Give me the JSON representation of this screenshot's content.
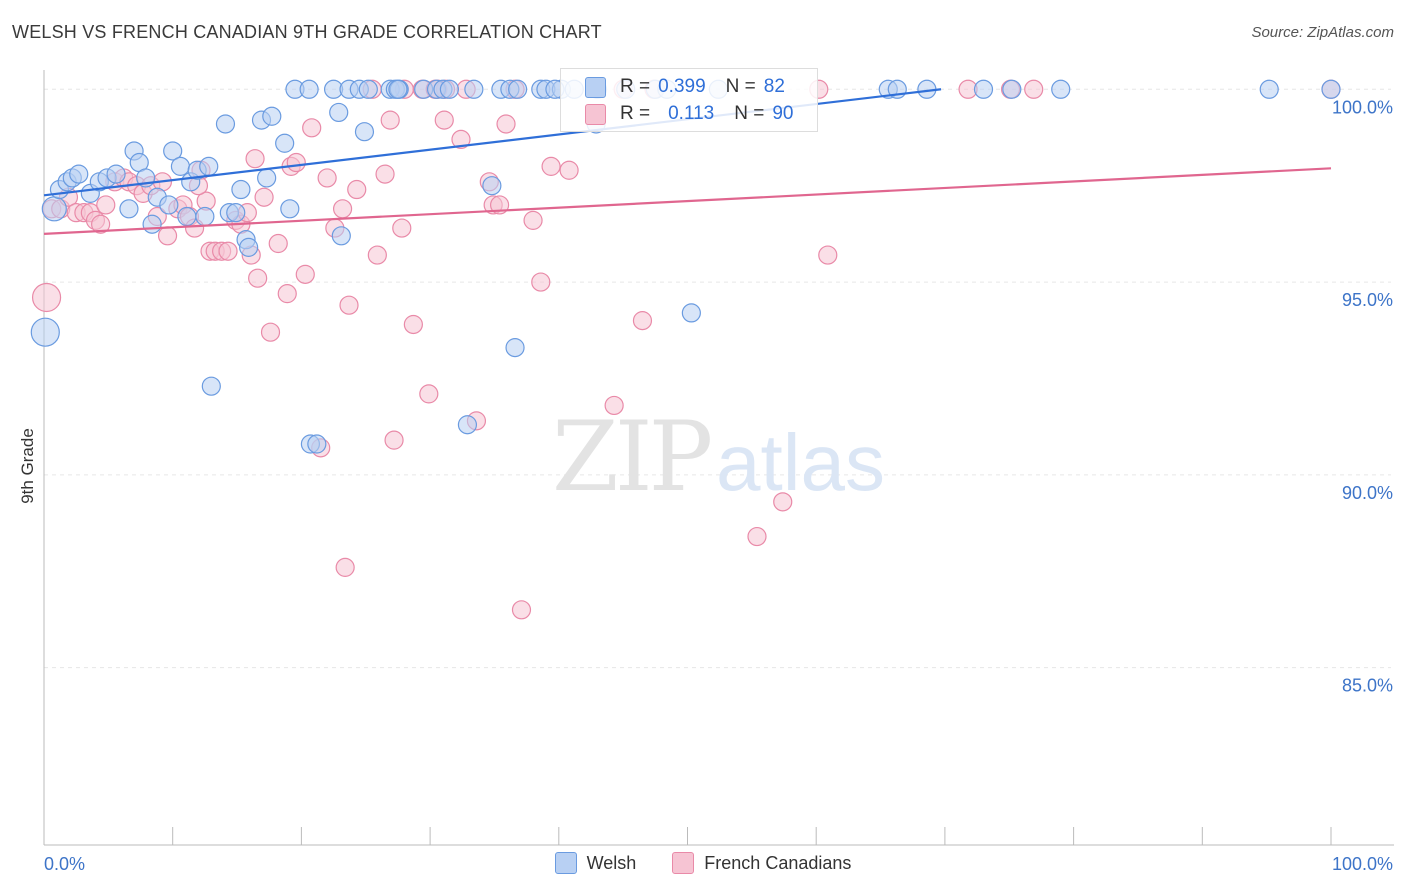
{
  "chart_data": {
    "type": "scatter",
    "title": "WELSH VS FRENCH CANADIAN 9TH GRADE CORRELATION CHART",
    "source": "Source: ZipAtlas.com",
    "xlabel": "",
    "ylabel": "9th Grade",
    "xlim": [
      0,
      100
    ],
    "ylim": [
      80.4,
      100.5
    ],
    "x_tick_labels": {
      "left": "0.0%",
      "right": "100.0%"
    },
    "y_ticks": [
      {
        "value": 100,
        "label": "100.0%"
      },
      {
        "value": 95,
        "label": "95.0%"
      },
      {
        "value": 90,
        "label": "90.0%"
      },
      {
        "value": 85,
        "label": "85.0%"
      }
    ],
    "watermark": {
      "zip": "ZIP",
      "atlas": "atlas"
    },
    "series": [
      {
        "name": "Welsh",
        "color": "#6a9be0",
        "fill": "#b8d0f3",
        "stats": {
          "r_label": "R =",
          "r_value": "0.399",
          "n_label": "N =",
          "n_value": "82"
        },
        "trend": {
          "x": [
            0,
            69.7
          ],
          "y": [
            97.25,
            100.0
          ]
        },
        "points": [
          [
            0.1,
            93.7,
            14
          ],
          [
            0.8,
            96.9,
            12
          ],
          [
            1.2,
            97.4,
            9
          ],
          [
            1.8,
            97.6,
            9
          ],
          [
            2.2,
            97.7,
            9
          ],
          [
            2.7,
            97.8,
            9
          ],
          [
            3.6,
            97.3,
            9
          ],
          [
            4.3,
            97.6,
            9
          ],
          [
            4.9,
            97.7,
            9
          ],
          [
            5.6,
            97.8,
            9
          ],
          [
            6.6,
            96.9,
            9
          ],
          [
            7.0,
            98.4,
            9
          ],
          [
            7.4,
            98.1,
            9
          ],
          [
            7.9,
            97.7,
            9
          ],
          [
            8.4,
            96.5,
            9
          ],
          [
            8.8,
            97.2,
            9
          ],
          [
            9.7,
            97.0,
            9
          ],
          [
            10.0,
            98.4,
            9
          ],
          [
            10.6,
            98.0,
            9
          ],
          [
            11.1,
            96.7,
            9
          ],
          [
            11.4,
            97.6,
            9
          ],
          [
            11.9,
            97.9,
            9
          ],
          [
            12.5,
            96.7,
            9
          ],
          [
            12.8,
            98.0,
            9
          ],
          [
            13.0,
            92.3,
            9
          ],
          [
            14.1,
            99.1,
            9
          ],
          [
            14.4,
            96.8,
            9
          ],
          [
            14.9,
            96.8,
            9
          ],
          [
            15.3,
            97.4,
            9
          ],
          [
            15.7,
            96.1,
            9
          ],
          [
            15.9,
            95.9,
            9
          ],
          [
            16.9,
            99.2,
            9
          ],
          [
            17.3,
            97.7,
            9
          ],
          [
            17.7,
            99.3,
            9
          ],
          [
            18.7,
            98.6,
            9
          ],
          [
            19.1,
            96.9,
            9
          ],
          [
            19.5,
            100.0,
            9
          ],
          [
            20.6,
            100.0,
            9
          ],
          [
            20.7,
            90.8,
            9
          ],
          [
            21.2,
            90.8,
            9
          ],
          [
            22.5,
            100.0,
            9
          ],
          [
            22.9,
            99.4,
            9
          ],
          [
            23.1,
            96.2,
            9
          ],
          [
            23.7,
            100.0,
            9
          ],
          [
            24.5,
            100.0,
            9
          ],
          [
            24.9,
            98.9,
            9
          ],
          [
            25.2,
            100.0,
            9
          ],
          [
            26.9,
            100.0,
            9
          ],
          [
            27.3,
            100.0,
            9
          ],
          [
            27.6,
            100.0,
            9
          ],
          [
            29.5,
            100.0,
            9
          ],
          [
            30.5,
            100.0,
            9
          ],
          [
            31.0,
            100.0,
            9
          ],
          [
            31.5,
            100.0,
            9
          ],
          [
            32.9,
            91.3,
            9
          ],
          [
            33.4,
            100.0,
            9
          ],
          [
            35.5,
            100.0,
            9
          ],
          [
            36.2,
            100.0,
            9
          ],
          [
            34.8,
            97.5,
            9
          ],
          [
            36.6,
            93.3,
            9
          ],
          [
            38.6,
            100.0,
            9
          ],
          [
            39.0,
            100.0,
            9
          ],
          [
            40.2,
            100.0,
            9
          ],
          [
            41.2,
            100.0,
            9
          ],
          [
            42.9,
            99.1,
            9
          ],
          [
            43.0,
            100.0,
            9
          ],
          [
            45.2,
            100.0,
            9
          ],
          [
            47.5,
            100.0,
            9
          ],
          [
            48.4,
            100.0,
            9
          ],
          [
            50.3,
            94.2,
            9
          ],
          [
            52.4,
            100.0,
            9
          ],
          [
            65.6,
            100.0,
            9
          ],
          [
            66.3,
            100.0,
            9
          ],
          [
            68.6,
            100.0,
            9
          ],
          [
            73.0,
            100.0,
            9
          ],
          [
            75.2,
            100.0,
            9
          ],
          [
            79.0,
            100.0,
            9
          ],
          [
            95.2,
            100.0,
            9
          ],
          [
            100.0,
            100.0,
            9
          ],
          [
            27.5,
            100.0,
            9
          ],
          [
            36.8,
            100.0,
            9
          ],
          [
            39.7,
            100.0,
            9
          ]
        ]
      },
      {
        "name": "French Canadians",
        "color": "#e98aa8",
        "fill": "#f6c4d3",
        "stats": {
          "r_label": "R =",
          "r_value": "0.113",
          "n_label": "N =",
          "n_value": "90"
        },
        "trend": {
          "x": [
            0,
            100
          ],
          "y": [
            96.25,
            97.95
          ]
        },
        "points": [
          [
            0.2,
            94.6,
            14
          ],
          [
            0.6,
            96.9,
            9
          ],
          [
            1.3,
            96.9,
            9
          ],
          [
            1.9,
            97.2,
            9
          ],
          [
            2.5,
            96.8,
            9
          ],
          [
            3.1,
            96.8,
            9
          ],
          [
            3.6,
            96.8,
            9
          ],
          [
            4.0,
            96.6,
            9
          ],
          [
            4.4,
            96.5,
            9
          ],
          [
            4.8,
            97.0,
            9
          ],
          [
            5.5,
            97.6,
            9
          ],
          [
            6.2,
            97.7,
            9
          ],
          [
            6.6,
            97.6,
            9
          ],
          [
            7.2,
            97.5,
            9
          ],
          [
            7.7,
            97.3,
            9
          ],
          [
            8.3,
            97.5,
            9
          ],
          [
            8.8,
            96.7,
            9
          ],
          [
            9.2,
            97.6,
            9
          ],
          [
            9.6,
            96.2,
            9
          ],
          [
            10.4,
            96.9,
            9
          ],
          [
            10.8,
            97.0,
            9
          ],
          [
            11.3,
            96.7,
            9
          ],
          [
            11.7,
            96.4,
            9
          ],
          [
            12.2,
            97.9,
            9
          ],
          [
            12.6,
            97.1,
            9
          ],
          [
            12.9,
            95.8,
            9
          ],
          [
            13.3,
            95.8,
            9
          ],
          [
            13.8,
            95.8,
            9
          ],
          [
            14.3,
            95.8,
            9
          ],
          [
            14.9,
            96.6,
            9
          ],
          [
            15.3,
            96.5,
            9
          ],
          [
            15.8,
            96.8,
            9
          ],
          [
            16.1,
            95.7,
            9
          ],
          [
            16.6,
            95.1,
            9
          ],
          [
            17.1,
            97.2,
            9
          ],
          [
            17.6,
            93.7,
            9
          ],
          [
            18.2,
            96.0,
            9
          ],
          [
            18.9,
            94.7,
            9
          ],
          [
            19.2,
            98.0,
            9
          ],
          [
            19.6,
            98.1,
            9
          ],
          [
            20.3,
            95.2,
            9
          ],
          [
            20.8,
            99.0,
            9
          ],
          [
            21.5,
            90.7,
            9
          ],
          [
            22.0,
            97.7,
            9
          ],
          [
            22.6,
            96.4,
            9
          ],
          [
            23.2,
            96.9,
            9
          ],
          [
            23.4,
            87.6,
            9
          ],
          [
            23.7,
            94.4,
            9
          ],
          [
            24.3,
            97.4,
            9
          ],
          [
            25.5,
            100.0,
            9
          ],
          [
            25.9,
            95.7,
            9
          ],
          [
            26.5,
            97.8,
            9
          ],
          [
            26.9,
            99.2,
            9
          ],
          [
            27.2,
            90.9,
            9
          ],
          [
            28.0,
            100.0,
            9
          ],
          [
            28.7,
            93.9,
            9
          ],
          [
            29.4,
            100.0,
            9
          ],
          [
            29.9,
            92.1,
            9
          ],
          [
            30.6,
            100.0,
            9
          ],
          [
            31.2,
            100.0,
            9
          ],
          [
            30.4,
            100.0,
            9
          ],
          [
            31.1,
            99.2,
            9
          ],
          [
            32.4,
            98.7,
            9
          ],
          [
            32.8,
            100.0,
            9
          ],
          [
            33.6,
            91.4,
            9
          ],
          [
            34.6,
            97.6,
            9
          ],
          [
            34.9,
            97.0,
            9
          ],
          [
            35.4,
            97.0,
            9
          ],
          [
            35.9,
            99.1,
            9
          ],
          [
            36.6,
            100.0,
            9
          ],
          [
            37.1,
            86.5,
            9
          ],
          [
            38.0,
            96.6,
            9
          ],
          [
            38.6,
            95.0,
            9
          ],
          [
            39.4,
            98.0,
            9
          ],
          [
            40.8,
            97.9,
            9
          ],
          [
            44.3,
            91.8,
            9
          ],
          [
            45.0,
            100.0,
            9
          ],
          [
            46.5,
            94.0,
            9
          ],
          [
            47.4,
            100.0,
            9
          ],
          [
            55.4,
            88.4,
            9
          ],
          [
            57.4,
            89.3,
            9
          ],
          [
            60.2,
            100.0,
            9
          ],
          [
            60.9,
            95.7,
            9
          ],
          [
            71.8,
            100.0,
            9
          ],
          [
            75.1,
            100.0,
            9
          ],
          [
            76.9,
            100.0,
            9
          ],
          [
            100.0,
            100.0,
            9
          ],
          [
            12.0,
            97.5,
            9
          ],
          [
            16.4,
            98.2,
            9
          ],
          [
            27.8,
            96.4,
            9
          ]
        ]
      }
    ]
  }
}
